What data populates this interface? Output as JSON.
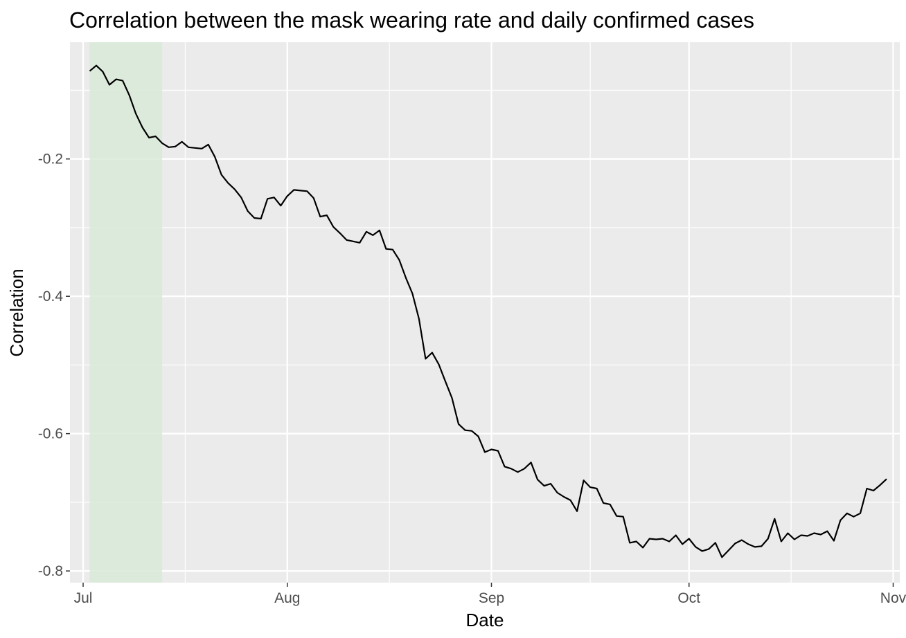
{
  "chart_data": {
    "type": "line",
    "title": "Correlation between the mask wearing rate and daily confirmed cases",
    "xlabel": "Date",
    "ylabel": "Correlation",
    "x_tick_labels": [
      "Jul",
      "Aug",
      "Sep",
      "Oct",
      "Nov"
    ],
    "y_tick_labels": [
      "-0.2",
      "-0.4",
      "-0.6",
      "-0.8"
    ],
    "y_ticks": [
      -0.2,
      -0.4,
      -0.6,
      -0.8
    ],
    "ylim": [
      -0.817,
      -0.03
    ],
    "xlim": [
      "2020-06-29",
      "2020-11-02"
    ],
    "grid": true,
    "panel_background": "#ebebeb",
    "line_color": "#000000",
    "shaded_region": {
      "start": "2020-07-02",
      "end": "2020-07-13",
      "color": "#d9ead8"
    },
    "start_date": "2020-07-02",
    "x": [
      "2020-07-02",
      "2020-07-03",
      "2020-07-04",
      "2020-07-05",
      "2020-07-06",
      "2020-07-07",
      "2020-07-08",
      "2020-07-09",
      "2020-07-10",
      "2020-07-11",
      "2020-07-12",
      "2020-07-13",
      "2020-07-14",
      "2020-07-15",
      "2020-07-16",
      "2020-07-17",
      "2020-07-18",
      "2020-07-19",
      "2020-07-20",
      "2020-07-21",
      "2020-07-22",
      "2020-07-23",
      "2020-07-24",
      "2020-07-25",
      "2020-07-26",
      "2020-07-27",
      "2020-07-28",
      "2020-07-29",
      "2020-07-30",
      "2020-07-31",
      "2020-08-01",
      "2020-08-02",
      "2020-08-03",
      "2020-08-04",
      "2020-08-05",
      "2020-08-06",
      "2020-08-07",
      "2020-08-08",
      "2020-08-09",
      "2020-08-10",
      "2020-08-11",
      "2020-08-12",
      "2020-08-13",
      "2020-08-14",
      "2020-08-15",
      "2020-08-16",
      "2020-08-17",
      "2020-08-18",
      "2020-08-19",
      "2020-08-20",
      "2020-08-21",
      "2020-08-22",
      "2020-08-23",
      "2020-08-24",
      "2020-08-25",
      "2020-08-26",
      "2020-08-27",
      "2020-08-28",
      "2020-08-29",
      "2020-08-30",
      "2020-08-31",
      "2020-09-01",
      "2020-09-02",
      "2020-09-03",
      "2020-09-04",
      "2020-09-05",
      "2020-09-06",
      "2020-09-07",
      "2020-09-08",
      "2020-09-09",
      "2020-09-10",
      "2020-09-11",
      "2020-09-12",
      "2020-09-13",
      "2020-09-14",
      "2020-09-15",
      "2020-09-16",
      "2020-09-17",
      "2020-09-18",
      "2020-09-19",
      "2020-09-20",
      "2020-09-21",
      "2020-09-22",
      "2020-09-23",
      "2020-09-24",
      "2020-09-25",
      "2020-09-26",
      "2020-09-27",
      "2020-09-28",
      "2020-09-29",
      "2020-09-30",
      "2020-10-01",
      "2020-10-02",
      "2020-10-03",
      "2020-10-04",
      "2020-10-05",
      "2020-10-06",
      "2020-10-07",
      "2020-10-08",
      "2020-10-09",
      "2020-10-10",
      "2020-10-11",
      "2020-10-12",
      "2020-10-13",
      "2020-10-14",
      "2020-10-15",
      "2020-10-16",
      "2020-10-17",
      "2020-10-18",
      "2020-10-19",
      "2020-10-20",
      "2020-10-21",
      "2020-10-22",
      "2020-10-23",
      "2020-10-24",
      "2020-10-25",
      "2020-10-26",
      "2020-10-27",
      "2020-10-28",
      "2020-10-29",
      "2020-10-30",
      "2020-10-31"
    ],
    "values": [
      -0.072,
      -0.064,
      -0.073,
      -0.092,
      -0.084,
      -0.086,
      -0.107,
      -0.134,
      -0.154,
      -0.169,
      -0.167,
      -0.177,
      -0.183,
      -0.182,
      -0.175,
      -0.183,
      -0.184,
      -0.185,
      -0.179,
      -0.197,
      -0.223,
      -0.235,
      -0.244,
      -0.256,
      -0.276,
      -0.286,
      -0.287,
      -0.258,
      -0.256,
      -0.268,
      -0.254,
      -0.245,
      -0.246,
      -0.247,
      -0.257,
      -0.284,
      -0.282,
      -0.299,
      -0.308,
      -0.318,
      -0.32,
      -0.322,
      -0.306,
      -0.311,
      -0.304,
      -0.331,
      -0.332,
      -0.347,
      -0.373,
      -0.396,
      -0.433,
      -0.491,
      -0.482,
      -0.499,
      -0.524,
      -0.548,
      -0.586,
      -0.595,
      -0.596,
      -0.604,
      -0.627,
      -0.623,
      -0.625,
      -0.648,
      -0.651,
      -0.656,
      -0.651,
      -0.642,
      -0.667,
      -0.676,
      -0.673,
      -0.686,
      -0.692,
      -0.697,
      -0.713,
      -0.668,
      -0.678,
      -0.68,
      -0.701,
      -0.703,
      -0.72,
      -0.721,
      -0.759,
      -0.757,
      -0.766,
      -0.753,
      -0.754,
      -0.753,
      -0.757,
      -0.748,
      -0.761,
      -0.753,
      -0.765,
      -0.771,
      -0.768,
      -0.759,
      -0.78,
      -0.77,
      -0.76,
      -0.755,
      -0.761,
      -0.765,
      -0.764,
      -0.753,
      -0.724,
      -0.757,
      -0.745,
      -0.754,
      -0.748,
      -0.749,
      -0.745,
      -0.747,
      -0.742,
      -0.756,
      -0.726,
      -0.716,
      -0.721,
      -0.716,
      -0.68,
      -0.683,
      -0.675,
      -0.666
    ]
  }
}
